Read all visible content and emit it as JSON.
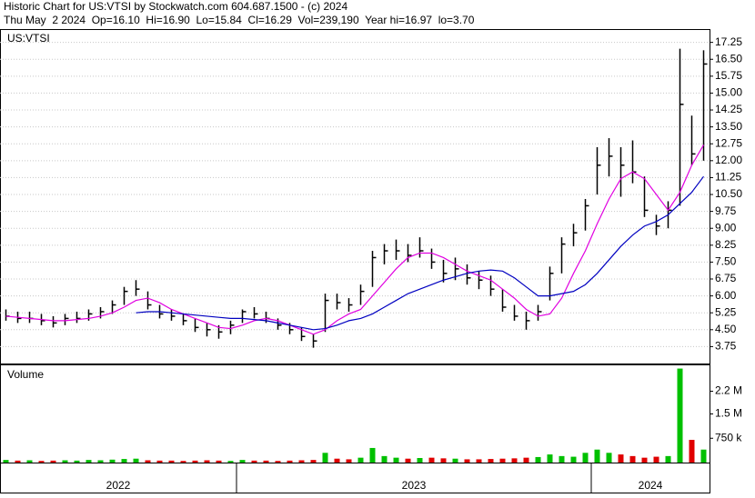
{
  "header": {
    "title": "Historic Chart for US:VTSI by Stockwatch.com 604.687.1500 - (c) 2024",
    "info": "Thu May  2 2024  Op=16.10  Hi=16.90  Lo=15.84  Cl=16.29  Vol=239,190  Year hi=16.97  lo=3.70"
  },
  "x_axis": {
    "labels": [
      "2022",
      "2023",
      "2024"
    ],
    "starts": [
      0,
      20,
      50
    ]
  },
  "chart_data": [
    {
      "type": "ohlc",
      "label": "US:VTSI",
      "color": "#000000",
      "grid": true,
      "high": [
        5.4,
        5.3,
        5.3,
        5.2,
        5.1,
        5.2,
        5.3,
        5.4,
        5.5,
        5.8,
        6.4,
        6.7,
        6.2,
        5.6,
        5.4,
        5.2,
        5.0,
        4.8,
        4.7,
        4.9,
        5.4,
        5.5,
        5.3,
        5.0,
        4.8,
        4.6,
        4.3,
        6.1,
        6.1,
        5.9,
        6.5,
        8.0,
        8.3,
        8.5,
        8.3,
        8.6,
        8.1,
        7.6,
        7.7,
        7.4,
        7.1,
        6.9,
        6.3,
        5.6,
        5.3,
        5.6,
        7.3,
        8.6,
        9.2,
        10.3,
        12.6,
        13.0,
        12.6,
        12.9,
        11.3,
        9.6,
        10.2,
        16.97,
        14.0,
        16.9
      ],
      "low": [
        4.9,
        4.8,
        4.8,
        4.7,
        4.6,
        4.7,
        4.8,
        4.9,
        5.0,
        5.2,
        5.6,
        6.0,
        5.4,
        5.0,
        4.9,
        4.7,
        4.4,
        4.2,
        4.1,
        4.3,
        4.8,
        5.0,
        4.8,
        4.5,
        4.3,
        4.0,
        3.7,
        4.4,
        5.4,
        5.3,
        5.6,
        6.4,
        7.4,
        7.6,
        7.5,
        7.7,
        7.2,
        6.6,
        6.7,
        6.5,
        6.3,
        6.0,
        5.3,
        4.9,
        4.5,
        4.9,
        5.8,
        7.0,
        8.2,
        8.9,
        10.5,
        11.3,
        10.4,
        11.0,
        9.5,
        8.7,
        9.0,
        10.0,
        11.8,
        12.0
      ],
      "close": [
        5.1,
        5.0,
        5.0,
        4.9,
        4.8,
        5.0,
        5.0,
        5.2,
        5.3,
        5.6,
        6.2,
        6.3,
        5.6,
        5.2,
        5.1,
        4.9,
        4.6,
        4.5,
        4.4,
        4.7,
        5.3,
        5.2,
        5.0,
        4.7,
        4.5,
        4.2,
        4.0,
        5.8,
        5.7,
        5.6,
        6.2,
        7.7,
        8.0,
        8.0,
        7.8,
        8.0,
        7.5,
        7.0,
        7.2,
        6.8,
        6.7,
        6.3,
        5.5,
        5.1,
        4.9,
        5.3,
        7.0,
        8.3,
        8.8,
        10.0,
        11.8,
        12.2,
        11.8,
        11.5,
        9.8,
        9.1,
        9.8,
        14.5,
        12.3,
        16.29
      ],
      "series": [
        {
          "color": "#e000e0",
          "values": [
            5.1,
            5.05,
            5.0,
            4.95,
            4.9,
            4.9,
            4.95,
            5.0,
            5.1,
            5.25,
            5.5,
            5.8,
            5.9,
            5.7,
            5.4,
            5.2,
            5.0,
            4.8,
            4.6,
            4.55,
            4.7,
            4.9,
            5.0,
            4.9,
            4.7,
            4.5,
            4.3,
            4.5,
            4.9,
            5.2,
            5.4,
            6.0,
            6.6,
            7.2,
            7.7,
            7.9,
            7.9,
            7.7,
            7.4,
            7.1,
            6.9,
            6.7,
            6.3,
            5.9,
            5.4,
            5.1,
            5.2,
            5.9,
            7.0,
            8.0,
            9.2,
            10.3,
            11.2,
            11.5,
            11.2,
            10.5,
            9.8,
            10.6,
            11.8,
            12.7
          ]
        },
        {
          "color": "#0000c0",
          "values": [
            null,
            null,
            null,
            null,
            null,
            null,
            null,
            null,
            null,
            null,
            null,
            5.25,
            5.3,
            5.3,
            5.25,
            5.2,
            5.15,
            5.1,
            5.05,
            5.0,
            5.0,
            4.95,
            4.9,
            4.8,
            4.7,
            4.6,
            4.5,
            4.55,
            4.7,
            4.9,
            5.0,
            5.2,
            5.5,
            5.8,
            6.1,
            6.3,
            6.5,
            6.7,
            6.85,
            7.0,
            7.1,
            7.15,
            7.1,
            6.8,
            6.4,
            6.0,
            6.0,
            6.1,
            6.2,
            6.5,
            7.0,
            7.6,
            8.2,
            8.7,
            9.1,
            9.3,
            9.6,
            10.1,
            10.6,
            11.3
          ]
        }
      ],
      "ylim": [
        3.0,
        17.8
      ],
      "yticks": [
        3.75,
        {
          "value": 4.5,
          "label": "4.50"
        },
        5.25,
        {
          "value": 6,
          "label": "6.00"
        },
        6.75,
        {
          "value": 7.5,
          "label": "7.50"
        },
        8.25,
        {
          "value": 9,
          "label": "9.00"
        },
        9.75,
        {
          "value": 10.5,
          "label": "10.50"
        },
        11.25,
        {
          "value": 12,
          "label": "12.00"
        },
        12.75,
        {
          "value": 13.5,
          "label": "13.50"
        },
        14.25,
        {
          "value": 15,
          "label": "15.00"
        },
        15.75,
        {
          "value": 16.5,
          "label": "16.50"
        },
        17.25
      ]
    },
    {
      "type": "bar",
      "label": "Volume",
      "up_color": "#00c000",
      "down_color": "#e00000",
      "values": [
        80000,
        60000,
        70000,
        50000,
        60000,
        70000,
        60000,
        80000,
        70000,
        90000,
        110000,
        120000,
        70000,
        60000,
        60000,
        50000,
        60000,
        70000,
        60000,
        50000,
        80000,
        60000,
        60000,
        50000,
        60000,
        70000,
        80000,
        300000,
        120000,
        100000,
        150000,
        450000,
        200000,
        150000,
        120000,
        140000,
        150000,
        130000,
        120000,
        100000,
        100000,
        110000,
        120000,
        130000,
        150000,
        170000,
        250000,
        200000,
        180000,
        300000,
        400000,
        300000,
        250000,
        200000,
        150000,
        180000,
        200000,
        2900000,
        700000,
        400000
      ],
      "ylim": [
        0,
        3000000
      ],
      "yticks": [
        {
          "value": 750000,
          "label": "750 k"
        },
        {
          "value": 1500000,
          "label": "1.5 M"
        },
        {
          "value": 2200000,
          "label": "2.2 M"
        }
      ]
    }
  ]
}
